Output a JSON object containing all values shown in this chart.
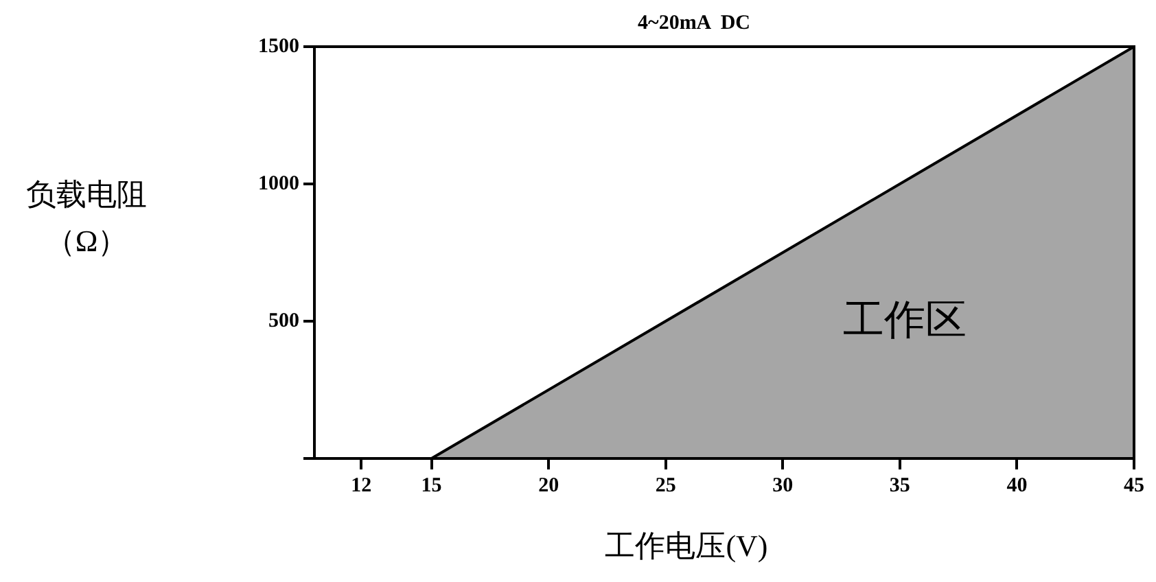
{
  "chart_data": {
    "type": "area",
    "title": "4~20mA  DC",
    "xlabel": "工作电压(V)",
    "ylabel": "负载电阻（Ω）",
    "x": [
      15,
      45
    ],
    "series": [
      {
        "color": "#a6a6a6",
        "values": [
          0,
          1500
        ]
      }
    ],
    "xlim": [
      10,
      45
    ],
    "xticks": [
      12,
      15,
      20,
      25,
      30,
      35,
      40,
      45
    ],
    "ylim": [
      0,
      1500
    ],
    "yticks": [
      {
        "value": 0,
        "label": null
      },
      500,
      1000,
      1500
    ],
    "annotations": [
      "工作区"
    ],
    "grid": false,
    "legend": false
  }
}
